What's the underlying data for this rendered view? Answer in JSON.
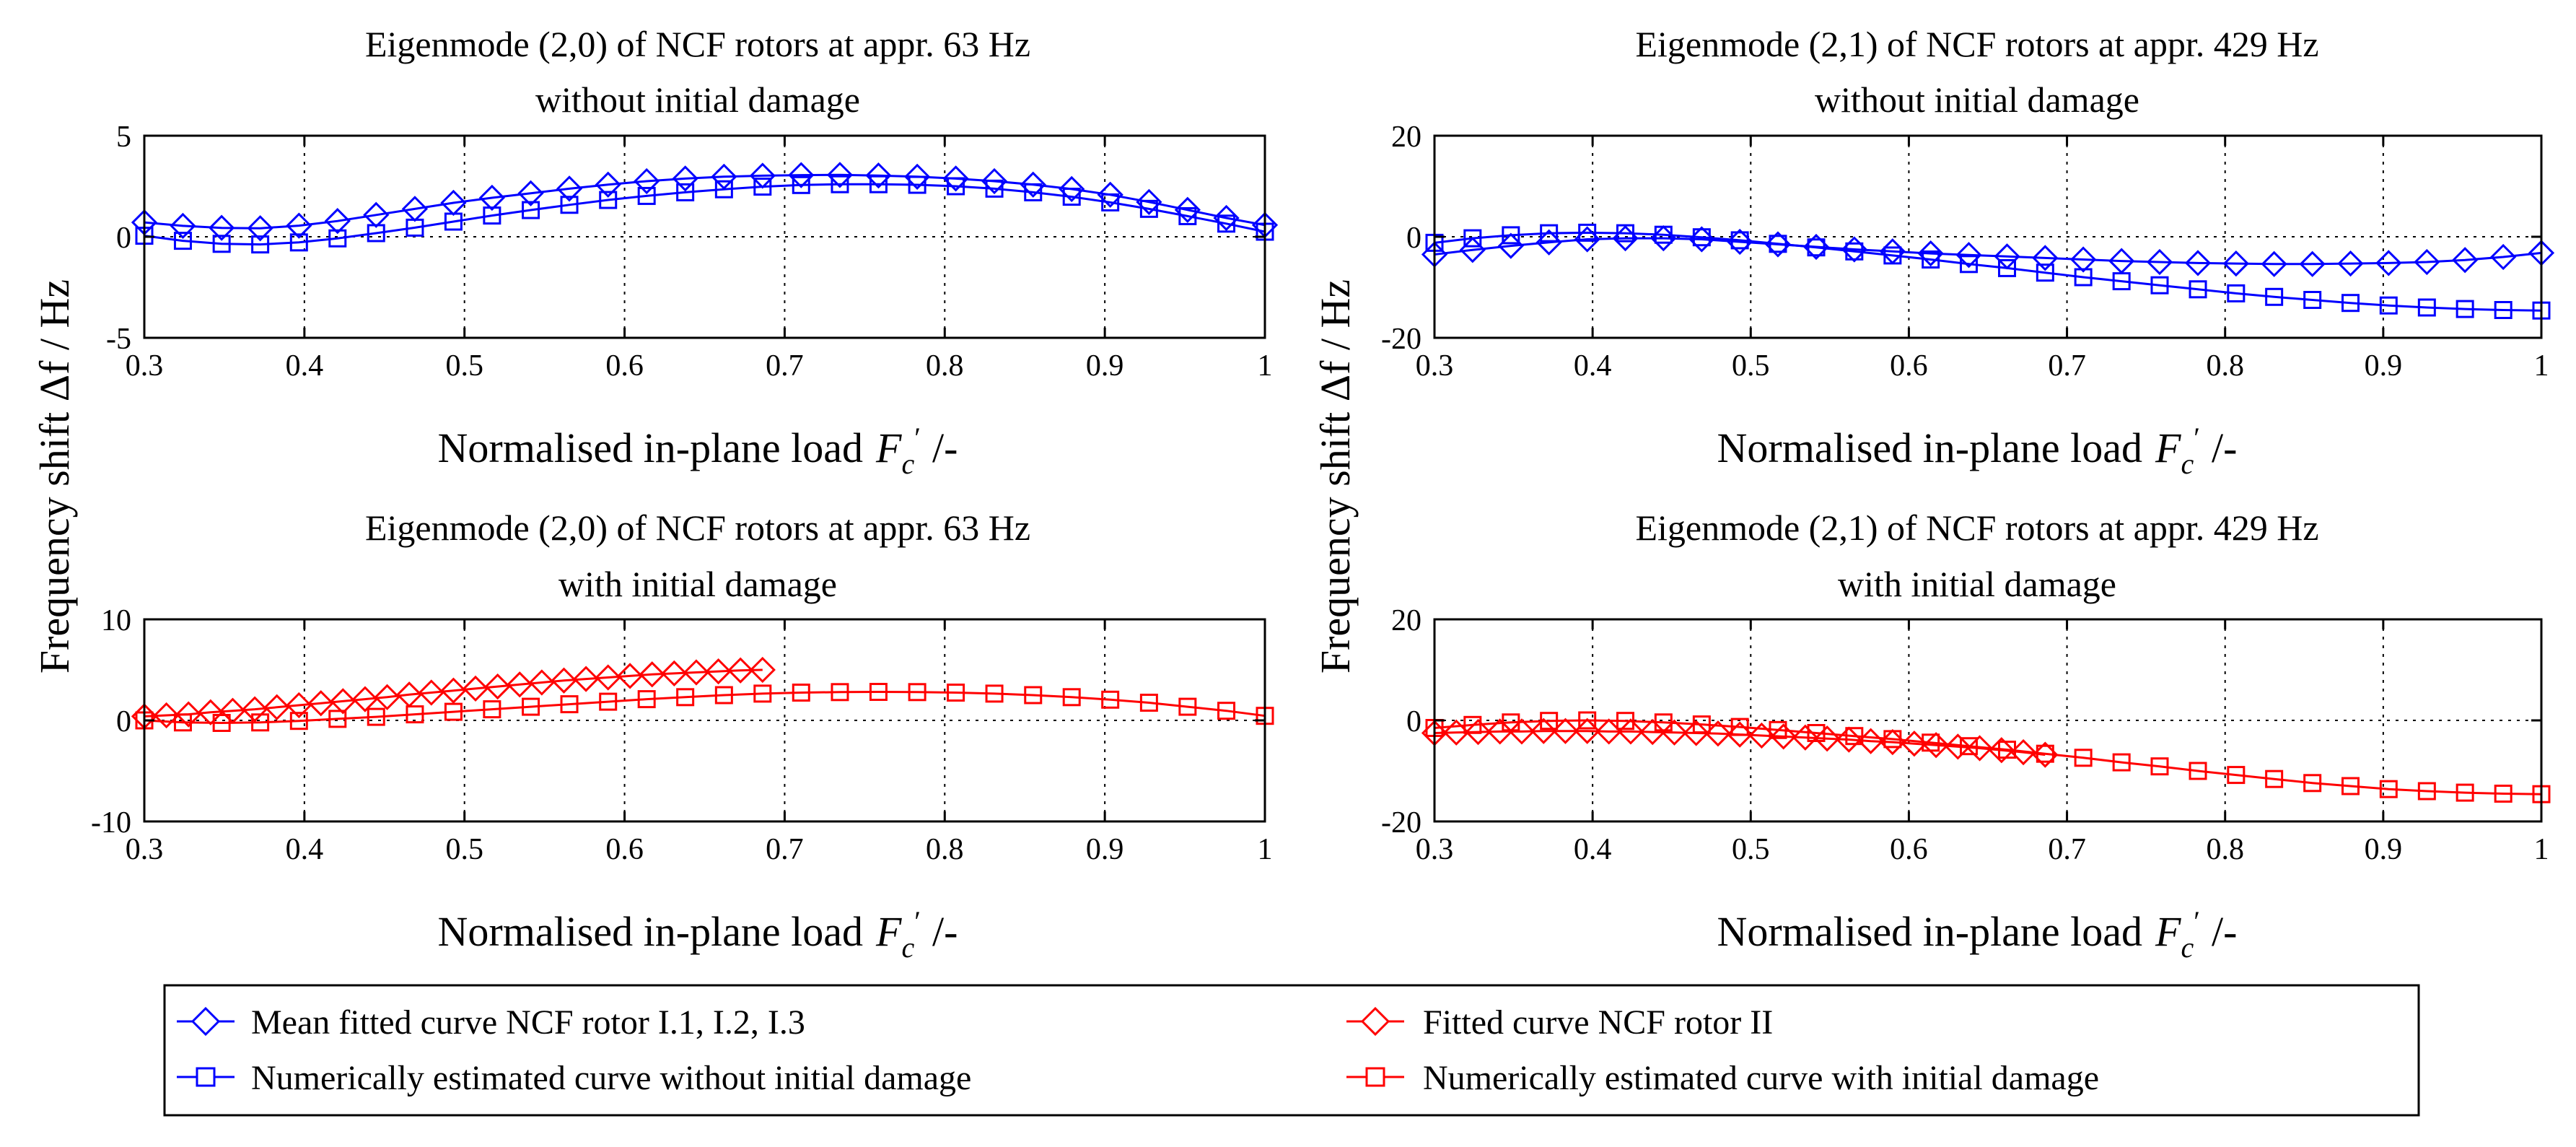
{
  "ylabel_shared_left": "Frequency shift Δf / Hz",
  "ylabel_shared_right": "Frequency shift Δf / Hz",
  "colors": {
    "blue": "#0000ff",
    "red": "#ff0000",
    "axis": "#000000"
  },
  "legend": {
    "entries": [
      {
        "label": "Mean fitted curve NCF rotor I.1, I.2, I.3",
        "color": "#0000ff",
        "marker": "diamond"
      },
      {
        "label": "Numerically estimated curve without initial damage",
        "color": "#0000ff",
        "marker": "square"
      },
      {
        "label": "Fitted curve NCF rotor II",
        "color": "#ff0000",
        "marker": "diamond"
      },
      {
        "label": "Numerically estimated curve with initial damage",
        "color": "#ff0000",
        "marker": "square"
      }
    ]
  },
  "chart_data": [
    {
      "type": "line",
      "title_line1": "Eigenmode (2,0) of NCF rotors at appr. 63 Hz",
      "title_line2": "without initial damage",
      "xlabel": "Normalised in-plane load",
      "xlabel_symbol": "F",
      "xlabel_sub": "c",
      "xlabel_prime": "′",
      "xlabel_unit": "/-",
      "xlim": [
        0.3,
        1
      ],
      "ylim": [
        -5,
        5
      ],
      "xticks": [
        0.3,
        0.4,
        0.5,
        0.6,
        0.7,
        0.8,
        0.9,
        1
      ],
      "xtick_labels": [
        "0.3",
        "0.4",
        "0.5",
        "0.6",
        "0.7",
        "0.8",
        "0.9",
        "1"
      ],
      "yticks": [
        -5,
        0,
        5
      ],
      "ytick_labels": [
        "-5",
        "0",
        "5"
      ],
      "series": [
        {
          "name": "Mean fitted curve NCF rotor I.1, I.2, I.3",
          "color": "#0000ff",
          "marker": "diamond",
          "x": [
            0.3,
            0.3241,
            0.3483,
            0.3724,
            0.3966,
            0.4207,
            0.4448,
            0.469,
            0.4931,
            0.5172,
            0.5414,
            0.5655,
            0.5897,
            0.6138,
            0.6379,
            0.6621,
            0.6862,
            0.7103,
            0.7345,
            0.7586,
            0.7828,
            0.8069,
            0.831,
            0.8552,
            0.8793,
            0.9034,
            0.9276,
            0.9517,
            0.9759,
            1.0
          ],
          "y": [
            0.71,
            0.54,
            0.44,
            0.42,
            0.55,
            0.78,
            1.08,
            1.38,
            1.68,
            1.93,
            2.15,
            2.38,
            2.58,
            2.75,
            2.88,
            2.97,
            3.02,
            3.05,
            3.06,
            3.03,
            2.97,
            2.88,
            2.75,
            2.58,
            2.36,
            2.08,
            1.72,
            1.33,
            0.93,
            0.58
          ]
        },
        {
          "name": "Numerically estimated curve without initial damage",
          "color": "#0000ff",
          "marker": "square",
          "x": [
            0.3,
            0.3241,
            0.3483,
            0.3724,
            0.3966,
            0.4207,
            0.4448,
            0.469,
            0.4931,
            0.5172,
            0.5414,
            0.5655,
            0.5897,
            0.6138,
            0.6379,
            0.6621,
            0.6862,
            0.7103,
            0.7345,
            0.7586,
            0.7828,
            0.8069,
            0.831,
            0.8552,
            0.8793,
            0.9034,
            0.9276,
            0.9517,
            0.9759,
            1.0
          ],
          "y": [
            0.05,
            -0.2,
            -0.35,
            -0.38,
            -0.28,
            -0.08,
            0.18,
            0.45,
            0.75,
            1.05,
            1.32,
            1.58,
            1.82,
            2.02,
            2.2,
            2.35,
            2.48,
            2.56,
            2.6,
            2.6,
            2.57,
            2.5,
            2.38,
            2.2,
            1.98,
            1.7,
            1.38,
            1.02,
            0.65,
            0.25
          ]
        }
      ]
    },
    {
      "type": "line",
      "title_line1": "Eigenmode (2,1) of NCF rotors at appr. 429 Hz",
      "title_line2": "without initial damage",
      "xlabel": "Normalised in-plane load",
      "xlabel_symbol": "F",
      "xlabel_sub": "c",
      "xlabel_prime": "′",
      "xlabel_unit": "/-",
      "xlim": [
        0.3,
        1
      ],
      "ylim": [
        -20,
        20
      ],
      "xticks": [
        0.3,
        0.4,
        0.5,
        0.6,
        0.7,
        0.8,
        0.9,
        1
      ],
      "xtick_labels": [
        "0.3",
        "0.4",
        "0.5",
        "0.6",
        "0.7",
        "0.8",
        "0.9",
        "1"
      ],
      "yticks": [
        -20,
        0,
        20
      ],
      "ytick_labels": [
        "-20",
        "0",
        "20"
      ],
      "series": [
        {
          "name": "Mean fitted curve NCF rotor I.1, I.2, I.3",
          "color": "#0000ff",
          "marker": "diamond",
          "x": [
            0.3,
            0.3241,
            0.3483,
            0.3724,
            0.3966,
            0.4207,
            0.4448,
            0.469,
            0.4931,
            0.5172,
            0.5414,
            0.5655,
            0.5897,
            0.6138,
            0.6379,
            0.6621,
            0.6862,
            0.7103,
            0.7345,
            0.7586,
            0.7828,
            0.8069,
            0.831,
            0.8552,
            0.8793,
            0.9034,
            0.9276,
            0.9517,
            0.9759,
            1.0
          ],
          "y": [
            -3.5,
            -2.6,
            -1.8,
            -1.1,
            -0.5,
            -0.3,
            -0.3,
            -0.5,
            -1.0,
            -1.5,
            -2.0,
            -2.5,
            -2.9,
            -3.3,
            -3.6,
            -3.9,
            -4.2,
            -4.5,
            -4.8,
            -5.0,
            -5.2,
            -5.3,
            -5.4,
            -5.4,
            -5.3,
            -5.2,
            -5.0,
            -4.6,
            -4.0,
            -3.2
          ]
        },
        {
          "name": "Numerically estimated curve without initial damage",
          "color": "#0000ff",
          "marker": "square",
          "x": [
            0.3,
            0.3241,
            0.3483,
            0.3724,
            0.3966,
            0.4207,
            0.4448,
            0.469,
            0.4931,
            0.5172,
            0.5414,
            0.5655,
            0.5897,
            0.6138,
            0.6379,
            0.6621,
            0.6862,
            0.7103,
            0.7345,
            0.7586,
            0.7828,
            0.8069,
            0.831,
            0.8552,
            0.8793,
            0.9034,
            0.9276,
            0.9517,
            0.9759,
            1.0
          ],
          "y": [
            -1.2,
            -0.3,
            0.3,
            0.7,
            0.8,
            0.7,
            0.4,
            -0.1,
            -0.7,
            -1.4,
            -2.1,
            -2.9,
            -3.7,
            -4.5,
            -5.4,
            -6.2,
            -7.1,
            -8.0,
            -8.8,
            -9.6,
            -10.4,
            -11.2,
            -11.9,
            -12.5,
            -13.1,
            -13.6,
            -14.0,
            -14.3,
            -14.5,
            -14.6
          ]
        }
      ]
    },
    {
      "type": "line",
      "title_line1": "Eigenmode (2,0) of NCF rotors at appr. 63 Hz",
      "title_line2": "with initial damage",
      "xlabel": "Normalised in-plane load",
      "xlabel_symbol": "F",
      "xlabel_sub": "c",
      "xlabel_prime": "′",
      "xlabel_unit": "/-",
      "xlim": [
        0.3,
        1
      ],
      "ylim": [
        -10,
        10
      ],
      "xticks": [
        0.3,
        0.4,
        0.5,
        0.6,
        0.7,
        0.8,
        0.9,
        1
      ],
      "xtick_labels": [
        "0.3",
        "0.4",
        "0.5",
        "0.6",
        "0.7",
        "0.8",
        "0.9",
        "1"
      ],
      "yticks": [
        -10,
        0,
        10
      ],
      "ytick_labels": [
        "-10",
        "0",
        "10"
      ],
      "series": [
        {
          "name": "Fitted curve NCF rotor II",
          "color": "#ff0000",
          "marker": "diamond",
          "x": [
            0.3,
            0.3138,
            0.3276,
            0.3414,
            0.3552,
            0.369,
            0.3828,
            0.3966,
            0.4103,
            0.4241,
            0.4379,
            0.4517,
            0.4655,
            0.4793,
            0.4931,
            0.5069,
            0.5207,
            0.5345,
            0.5483,
            0.5621,
            0.5759,
            0.5897,
            0.6034,
            0.6172,
            0.631,
            0.6448,
            0.6586,
            0.6724,
            0.6862
          ],
          "y": [
            0.4,
            0.5,
            0.6,
            0.8,
            0.95,
            1.1,
            1.3,
            1.5,
            1.7,
            1.9,
            2.1,
            2.3,
            2.55,
            2.75,
            2.95,
            3.15,
            3.35,
            3.55,
            3.75,
            3.95,
            4.1,
            4.25,
            4.4,
            4.55,
            4.65,
            4.75,
            4.85,
            4.95,
            5.0
          ]
        },
        {
          "name": "Numerically estimated curve with initial damage",
          "color": "#ff0000",
          "marker": "square",
          "x": [
            0.3,
            0.3241,
            0.3483,
            0.3724,
            0.3966,
            0.4207,
            0.4448,
            0.469,
            0.4931,
            0.5172,
            0.5414,
            0.5655,
            0.5897,
            0.6138,
            0.6379,
            0.6621,
            0.6862,
            0.7103,
            0.7345,
            0.7586,
            0.7828,
            0.8069,
            0.831,
            0.8552,
            0.8793,
            0.9034,
            0.9276,
            0.9517,
            0.9759,
            1.0
          ],
          "y": [
            0.0,
            -0.2,
            -0.25,
            -0.2,
            -0.05,
            0.15,
            0.35,
            0.6,
            0.85,
            1.1,
            1.35,
            1.6,
            1.85,
            2.1,
            2.3,
            2.5,
            2.65,
            2.75,
            2.8,
            2.82,
            2.8,
            2.75,
            2.65,
            2.5,
            2.3,
            2.05,
            1.75,
            1.35,
            0.95,
            0.45
          ]
        }
      ]
    },
    {
      "type": "line",
      "title_line1": "Eigenmode (2,1) of NCF rotors at appr. 429 Hz",
      "title_line2": "with initial damage",
      "xlabel": "Normalised in-plane load",
      "xlabel_symbol": "F",
      "xlabel_sub": "c",
      "xlabel_prime": "′",
      "xlabel_unit": "/-",
      "xlim": [
        0.3,
        1
      ],
      "ylim": [
        -20,
        20
      ],
      "xticks": [
        0.3,
        0.4,
        0.5,
        0.6,
        0.7,
        0.8,
        0.9,
        1
      ],
      "xtick_labels": [
        "0.3",
        "0.4",
        "0.5",
        "0.6",
        "0.7",
        "0.8",
        "0.9",
        "1"
      ],
      "yticks": [
        -20,
        0,
        20
      ],
      "ytick_labels": [
        "-20",
        "0",
        "20"
      ],
      "series": [
        {
          "name": "Fitted curve NCF rotor II",
          "color": "#ff0000",
          "marker": "diamond",
          "x": [
            0.3,
            0.3138,
            0.3276,
            0.3414,
            0.3552,
            0.369,
            0.3828,
            0.3966,
            0.4103,
            0.4241,
            0.4379,
            0.4517,
            0.4655,
            0.4793,
            0.4931,
            0.5069,
            0.5207,
            0.5345,
            0.5483,
            0.5621,
            0.5759,
            0.5897,
            0.6034,
            0.6172,
            0.631,
            0.6448,
            0.6586,
            0.6724,
            0.6862
          ],
          "y": [
            -2.5,
            -2.4,
            -2.3,
            -2.2,
            -2.2,
            -2.1,
            -2.1,
            -2.1,
            -2.2,
            -2.2,
            -2.3,
            -2.4,
            -2.5,
            -2.6,
            -2.8,
            -3.0,
            -3.2,
            -3.4,
            -3.6,
            -3.8,
            -4.1,
            -4.3,
            -4.6,
            -4.9,
            -5.2,
            -5.5,
            -5.9,
            -6.3,
            -6.8
          ]
        },
        {
          "name": "Numerically estimated curve with initial damage",
          "color": "#ff0000",
          "marker": "square",
          "x": [
            0.3,
            0.3241,
            0.3483,
            0.3724,
            0.3966,
            0.4207,
            0.4448,
            0.469,
            0.4931,
            0.5172,
            0.5414,
            0.5655,
            0.5897,
            0.6138,
            0.6379,
            0.6621,
            0.6862,
            0.7103,
            0.7345,
            0.7586,
            0.7828,
            0.8069,
            0.831,
            0.8552,
            0.8793,
            0.9034,
            0.9276,
            0.9517,
            0.9759,
            1.0
          ],
          "y": [
            -1.5,
            -0.9,
            -0.4,
            -0.1,
            0.0,
            -0.1,
            -0.4,
            -0.8,
            -1.3,
            -1.9,
            -2.5,
            -3.1,
            -3.7,
            -4.4,
            -5.1,
            -5.8,
            -6.6,
            -7.4,
            -8.3,
            -9.1,
            -10.0,
            -10.8,
            -11.6,
            -12.4,
            -13.0,
            -13.6,
            -14.0,
            -14.3,
            -14.5,
            -14.6
          ]
        }
      ]
    }
  ]
}
